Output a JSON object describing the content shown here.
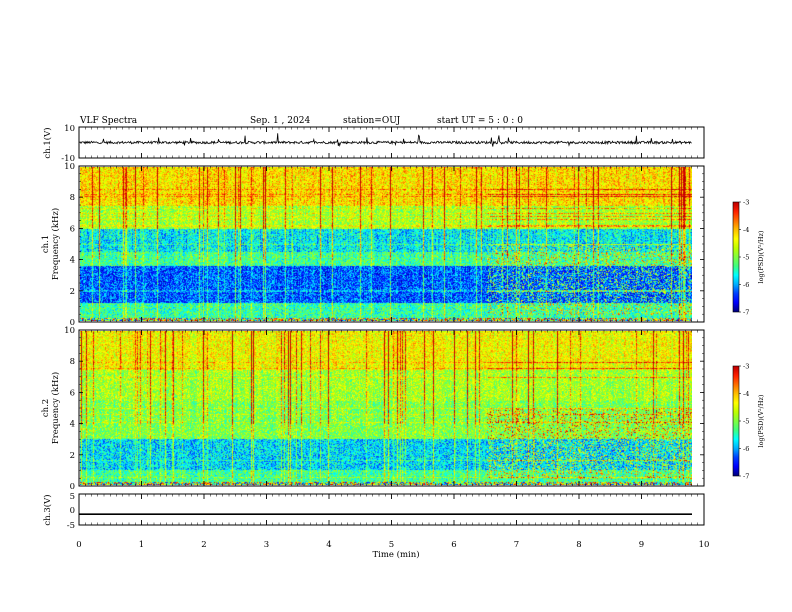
{
  "header": {
    "title": "VLF Spectra",
    "date": "Sep. 1 , 2024",
    "station": "station=OUJ",
    "start": "start UT =  5 : 0 : 0"
  },
  "colors": {
    "colormap": [
      "#00007f",
      "#0000ff",
      "#0040ff",
      "#00b0ff",
      "#00ffff",
      "#40ff80",
      "#80ff40",
      "#c0ff00",
      "#ffff00",
      "#ffc000",
      "#ff7000",
      "#ff2000",
      "#c00000"
    ],
    "line": "#000000"
  },
  "chart_data": [
    {
      "type": "line",
      "name": "ch1-waveform",
      "ylabel": "ch.1(V)",
      "yticks": [
        "10",
        "-10"
      ],
      "ylim": [
        -10,
        10
      ],
      "xlim": [
        0,
        10
      ],
      "baseline": 0
    },
    {
      "type": "heatmap",
      "name": "ch1-spectrogram",
      "ylabel_top": "ch.1",
      "ylabel": "Frequency (kHz)",
      "yticks": [
        "0",
        "2",
        "4",
        "6",
        "8",
        "10"
      ],
      "ylim": [
        0,
        10
      ],
      "xlim": [
        0,
        9.8
      ],
      "colorbar": {
        "label": "log(PSD)(V²/Hz)",
        "ticks": [
          "-3",
          "-4",
          "-5",
          "-6",
          "-7"
        ],
        "range": [
          -7,
          -3
        ]
      }
    },
    {
      "type": "heatmap",
      "name": "ch2-spectrogram",
      "ylabel_top": "ch.2",
      "ylabel": "Frequency (kHz)",
      "yticks": [
        "0",
        "2",
        "4",
        "6",
        "8",
        "10"
      ],
      "ylim": [
        0,
        10
      ],
      "xlim": [
        0,
        9.8
      ],
      "colorbar": {
        "label": "log(PSD)(V²/Hz)",
        "ticks": [
          "-3",
          "-4",
          "-5",
          "-6",
          "-7"
        ],
        "range": [
          -7,
          -3
        ]
      }
    },
    {
      "type": "line",
      "name": "ch3-waveform",
      "ylabel": "ch.3(V)",
      "yticks": [
        "5",
        "0",
        "-5"
      ],
      "ylim": [
        -5,
        5
      ],
      "xlim": [
        0,
        10
      ],
      "baseline": -1.5
    }
  ],
  "xaxis": {
    "label": "Time (min)",
    "ticks": [
      "0",
      "1",
      "2",
      "3",
      "4",
      "5",
      "6",
      "7",
      "8",
      "9",
      "10"
    ]
  }
}
